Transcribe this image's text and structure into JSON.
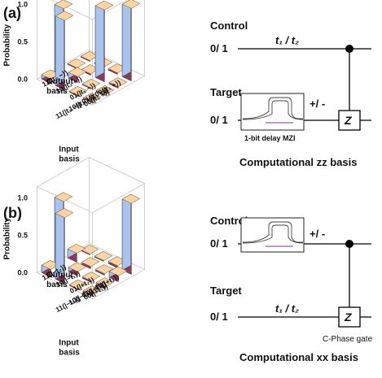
{
  "panels": [
    {
      "label": "(a)",
      "zlabel": "Probability",
      "zticks": [
        "1.0",
        "0.5",
        "0.0"
      ],
      "input_labels": [
        "00(|t₁ +⟩)",
        "01(|t₁ −⟩)",
        "10(|t₂ +⟩)",
        "11(|t₂ −⟩)"
      ],
      "output_labels": [
        "11(|t₂ −⟩)",
        "10(|t₂ +⟩)",
        "01(|t₁ −⟩)",
        "00(|t₁ +⟩)"
      ],
      "input_axis_title": "Input\nbasis",
      "output_axis_title": "Output\nbasis",
      "circuit": {
        "control_label": "Control",
        "control_state": "0/ 1",
        "target_label": "Target",
        "target_state": "0/ 1",
        "time_label": "t₁ / t₂",
        "sign_label": "+/ -",
        "mzi_label": "1-bit delay MZI",
        "gate_label": "Z",
        "gate_caption": "",
        "basis_title": "Computational zz basis"
      }
    },
    {
      "label": "(b)",
      "zlabel": "Probability",
      "zticks": [
        "1.0",
        "0.5",
        "0.0"
      ],
      "input_labels": [
        "00(|+t₁⟩)",
        "01(|+t₂⟩)",
        "10(|−t₁⟩)",
        "11(|−t₂⟩)"
      ],
      "output_labels": [
        "11(|−t₂⟩)",
        "10(|−t₁⟩)",
        "01(|+t₂⟩)",
        "00(|+t₁⟩)"
      ],
      "input_axis_title": "Input\nbasis",
      "output_axis_title": "Output\nbasis",
      "circuit": {
        "control_label": "Control",
        "control_state": "0/ 1",
        "target_label": "Target",
        "target_state": "0/ 1",
        "time_label": "t₁ / t₂",
        "sign_label": "+/ -",
        "mzi_label": "",
        "gate_label": "Z",
        "gate_caption": "C-Phase gate",
        "basis_title": "Computational xx basis"
      }
    }
  ],
  "chart_data": [
    {
      "type": "bar3d",
      "title": "(a)",
      "zlabel": "Probability",
      "zlim": [
        0,
        1.0
      ],
      "input_categories": [
        "00(|t₁ +⟩)",
        "01(|t₁ −⟩)",
        "10(|t₂ +⟩)",
        "11(|t₂ −⟩)"
      ],
      "output_categories": [
        "00(|t₁ +⟩)",
        "01(|t₁ −⟩)",
        "10(|t₂ +⟩)",
        "11(|t₂ −⟩)"
      ],
      "values": [
        [
          0.97,
          0.02,
          0.01,
          0.0
        ],
        [
          0.02,
          0.96,
          0.02,
          0.01
        ],
        [
          0.0,
          0.01,
          0.08,
          0.9
        ],
        [
          0.01,
          0.0,
          0.93,
          0.06
        ]
      ]
    },
    {
      "type": "bar3d",
      "title": "(b)",
      "zlabel": "Probability",
      "zlim": [
        0,
        1.0
      ],
      "input_categories": [
        "00(|+t₁⟩)",
        "01(|+t₂⟩)",
        "10(|−t₁⟩)",
        "11(|−t₂⟩)"
      ],
      "output_categories": [
        "00(|+t₁⟩)",
        "01(|+t₂⟩)",
        "10(|−t₁⟩)",
        "11(|−t₂⟩)"
      ],
      "values": [
        [
          0.95,
          0.03,
          0.01,
          0.01
        ],
        [
          0.08,
          0.02,
          0.03,
          0.12
        ],
        [
          0.03,
          0.02,
          0.06,
          0.91
        ],
        [
          0.02,
          0.0,
          0.88,
          0.1
        ]
      ]
    }
  ]
}
